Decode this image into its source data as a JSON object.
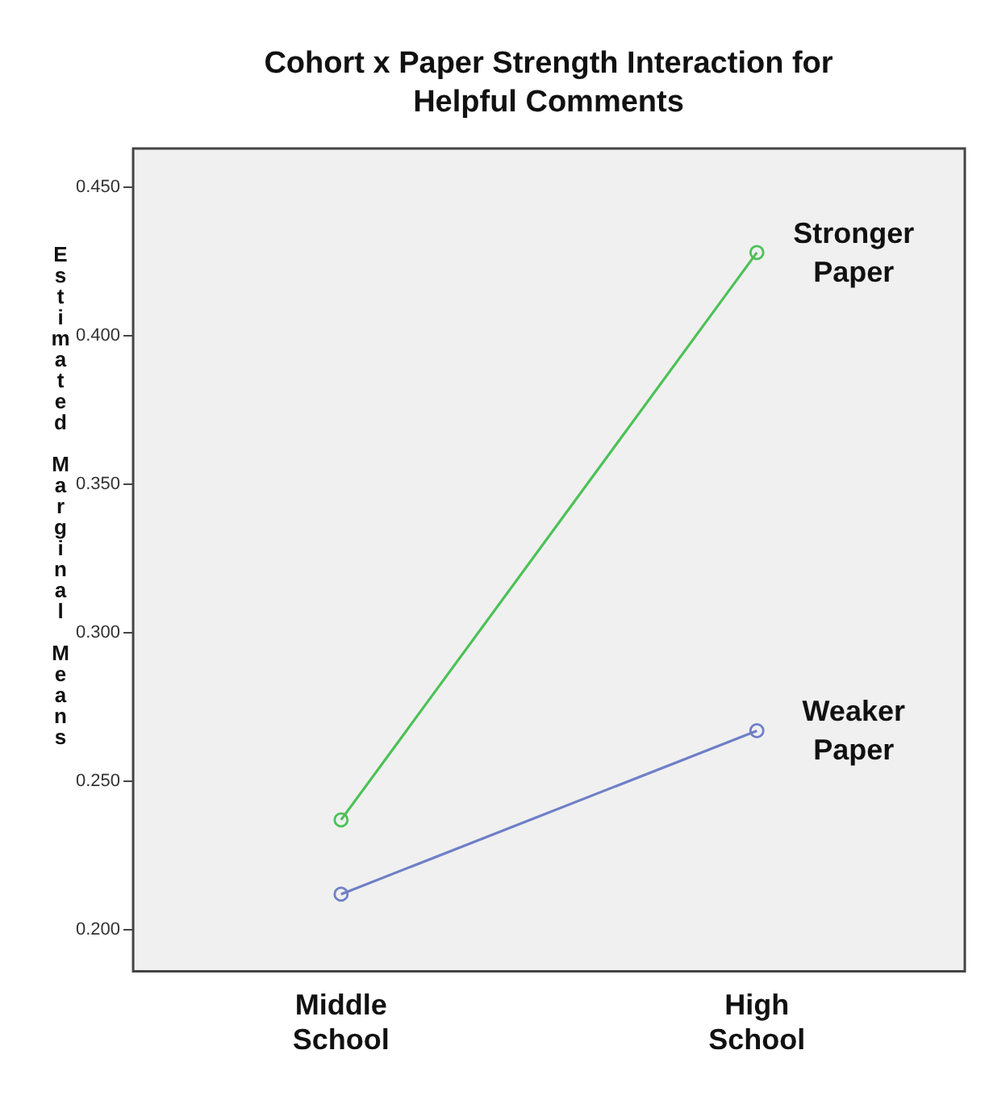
{
  "chart_data": {
    "type": "line",
    "title": "Cohort x Paper Strength Interaction for Helpful Comments",
    "ylabel": "Estimated Marginal Means",
    "categories": [
      "Middle School",
      "High School"
    ],
    "series": [
      {
        "name": "Stronger Paper",
        "color": "#4cc157",
        "values": [
          0.237,
          0.428
        ]
      },
      {
        "name": "Weaker Paper",
        "color": "#6f7fc7",
        "values": [
          0.212,
          0.267
        ]
      }
    ],
    "ylim": [
      0.186,
      0.463
    ],
    "yticks": [
      {
        "value": 0.2,
        "label": "0.200"
      },
      {
        "value": 0.25,
        "label": "0.250"
      },
      {
        "value": 0.3,
        "label": "0.300"
      },
      {
        "value": 0.35,
        "label": "0.350"
      },
      {
        "value": 0.4,
        "label": "0.400"
      },
      {
        "value": 0.45,
        "label": "0.450"
      }
    ],
    "grid": false,
    "legend": false,
    "marker": "circle",
    "line_style": "solid"
  }
}
